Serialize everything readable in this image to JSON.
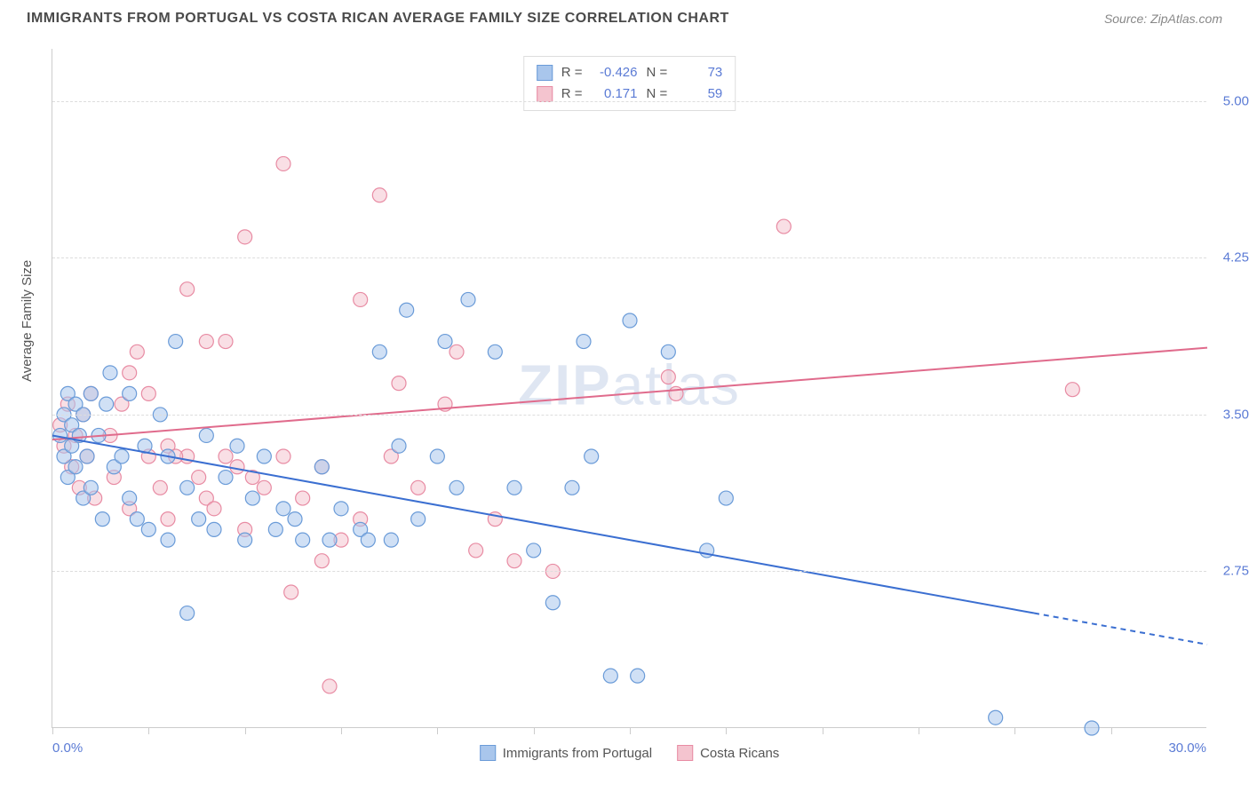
{
  "header": {
    "title": "IMMIGRANTS FROM PORTUGAL VS COSTA RICAN AVERAGE FAMILY SIZE CORRELATION CHART",
    "source": "Source: ZipAtlas.com"
  },
  "ylabel": "Average Family Size",
  "watermark_a": "ZIP",
  "watermark_b": "atlas",
  "chart": {
    "type": "scatter",
    "xlim": [
      0,
      30
    ],
    "ylim": [
      2.0,
      5.25
    ],
    "xtick_positions": [
      0,
      2.5,
      5,
      7.5,
      10,
      12.5,
      15,
      17.5,
      20,
      22.5,
      25,
      27.5
    ],
    "xaxis_min_label": "0.0%",
    "xaxis_max_label": "30.0%",
    "ytick_values": [
      2.75,
      3.5,
      4.25,
      5.0
    ],
    "ytick_labels": [
      "2.75",
      "3.50",
      "4.25",
      "5.00"
    ],
    "grid_color": "#dddddd",
    "background_color": "#ffffff",
    "marker_radius": 8,
    "marker_stroke_width": 1.2,
    "line_width": 2
  },
  "series": {
    "portugal": {
      "label": "Immigrants from Portugal",
      "color_fill": "#a9c6ec",
      "color_stroke": "#6a9bd8",
      "line_color": "#3b6fd1",
      "R_label": "R =",
      "R": "-0.426",
      "N_label": "N =",
      "N": "73",
      "trend": {
        "x1": 0,
        "y1": 3.4,
        "x2": 25.5,
        "y2": 2.55,
        "x2_dash": 30,
        "y2_dash": 2.4
      },
      "points": [
        [
          0.2,
          3.4
        ],
        [
          0.3,
          3.5
        ],
        [
          0.3,
          3.3
        ],
        [
          0.4,
          3.6
        ],
        [
          0.4,
          3.2
        ],
        [
          0.5,
          3.45
        ],
        [
          0.5,
          3.35
        ],
        [
          0.6,
          3.55
        ],
        [
          0.6,
          3.25
        ],
        [
          0.7,
          3.4
        ],
        [
          0.8,
          3.1
        ],
        [
          0.8,
          3.5
        ],
        [
          0.9,
          3.3
        ],
        [
          1.0,
          3.6
        ],
        [
          1.0,
          3.15
        ],
        [
          1.2,
          3.4
        ],
        [
          1.3,
          3.0
        ],
        [
          1.4,
          3.55
        ],
        [
          1.5,
          3.7
        ],
        [
          1.6,
          3.25
        ],
        [
          1.8,
          3.3
        ],
        [
          2.0,
          3.1
        ],
        [
          2.0,
          3.6
        ],
        [
          2.2,
          3.0
        ],
        [
          2.4,
          3.35
        ],
        [
          2.5,
          2.95
        ],
        [
          2.8,
          3.5
        ],
        [
          3.0,
          3.3
        ],
        [
          3.0,
          2.9
        ],
        [
          3.2,
          3.85
        ],
        [
          3.5,
          3.15
        ],
        [
          3.5,
          2.55
        ],
        [
          3.8,
          3.0
        ],
        [
          4.0,
          3.4
        ],
        [
          4.2,
          2.95
        ],
        [
          4.5,
          3.2
        ],
        [
          4.8,
          3.35
        ],
        [
          5.0,
          2.9
        ],
        [
          5.2,
          3.1
        ],
        [
          5.5,
          3.3
        ],
        [
          5.8,
          2.95
        ],
        [
          6.0,
          3.05
        ],
        [
          6.3,
          3.0
        ],
        [
          6.5,
          2.9
        ],
        [
          7.0,
          3.25
        ],
        [
          7.2,
          2.9
        ],
        [
          7.5,
          3.05
        ],
        [
          8.0,
          2.95
        ],
        [
          8.2,
          2.9
        ],
        [
          8.5,
          3.8
        ],
        [
          9.0,
          3.35
        ],
        [
          9.2,
          4.0
        ],
        [
          9.5,
          3.0
        ],
        [
          10.0,
          3.3
        ],
        [
          10.2,
          3.85
        ],
        [
          10.5,
          3.15
        ],
        [
          10.8,
          4.05
        ],
        [
          11.5,
          3.8
        ],
        [
          12.0,
          3.15
        ],
        [
          12.5,
          2.85
        ],
        [
          13.0,
          2.6
        ],
        [
          13.5,
          3.15
        ],
        [
          13.8,
          3.85
        ],
        [
          14.0,
          3.3
        ],
        [
          14.5,
          2.25
        ],
        [
          15.0,
          3.95
        ],
        [
          15.2,
          2.25
        ],
        [
          16.0,
          3.8
        ],
        [
          17.0,
          2.85
        ],
        [
          17.5,
          3.1
        ],
        [
          24.5,
          2.05
        ],
        [
          27.0,
          2.0
        ],
        [
          8.8,
          2.9
        ]
      ]
    },
    "costarica": {
      "label": "Costa Ricans",
      "color_fill": "#f4c4cf",
      "color_stroke": "#e88ba3",
      "line_color": "#e06b8c",
      "R_label": "R =",
      "R": "0.171",
      "N_label": "N =",
      "N": "59",
      "trend": {
        "x1": 0,
        "y1": 3.38,
        "x2": 30,
        "y2": 3.82
      },
      "points": [
        [
          0.2,
          3.45
        ],
        [
          0.3,
          3.35
        ],
        [
          0.4,
          3.55
        ],
        [
          0.5,
          3.25
        ],
        [
          0.6,
          3.4
        ],
        [
          0.7,
          3.15
        ],
        [
          0.8,
          3.5
        ],
        [
          0.9,
          3.3
        ],
        [
          1.0,
          3.6
        ],
        [
          1.1,
          3.1
        ],
        [
          1.5,
          3.4
        ],
        [
          1.6,
          3.2
        ],
        [
          1.8,
          3.55
        ],
        [
          2.0,
          3.7
        ],
        [
          2.0,
          3.05
        ],
        [
          2.2,
          3.8
        ],
        [
          2.5,
          3.3
        ],
        [
          2.8,
          3.15
        ],
        [
          3.0,
          3.35
        ],
        [
          3.0,
          3.0
        ],
        [
          3.5,
          4.1
        ],
        [
          3.5,
          3.3
        ],
        [
          3.8,
          3.2
        ],
        [
          4.0,
          3.85
        ],
        [
          4.0,
          3.1
        ],
        [
          4.2,
          3.05
        ],
        [
          4.5,
          3.3
        ],
        [
          4.8,
          3.25
        ],
        [
          5.0,
          4.35
        ],
        [
          5.0,
          2.95
        ],
        [
          5.2,
          3.2
        ],
        [
          5.5,
          3.15
        ],
        [
          6.0,
          4.7
        ],
        [
          6.0,
          3.3
        ],
        [
          6.2,
          2.65
        ],
        [
          6.5,
          3.1
        ],
        [
          7.0,
          3.25
        ],
        [
          7.0,
          2.8
        ],
        [
          7.2,
          2.2
        ],
        [
          7.5,
          2.9
        ],
        [
          8.0,
          4.05
        ],
        [
          8.0,
          3.0
        ],
        [
          8.5,
          4.55
        ],
        [
          8.8,
          3.3
        ],
        [
          9.0,
          3.65
        ],
        [
          9.5,
          3.15
        ],
        [
          10.2,
          3.55
        ],
        [
          10.5,
          3.8
        ],
        [
          11.0,
          2.85
        ],
        [
          11.5,
          3.0
        ],
        [
          12.0,
          2.8
        ],
        [
          13.0,
          2.75
        ],
        [
          16.0,
          3.68
        ],
        [
          16.2,
          3.6
        ],
        [
          19.0,
          4.4
        ],
        [
          26.5,
          3.62
        ],
        [
          4.5,
          3.85
        ],
        [
          3.2,
          3.3
        ],
        [
          2.5,
          3.6
        ]
      ]
    }
  }
}
